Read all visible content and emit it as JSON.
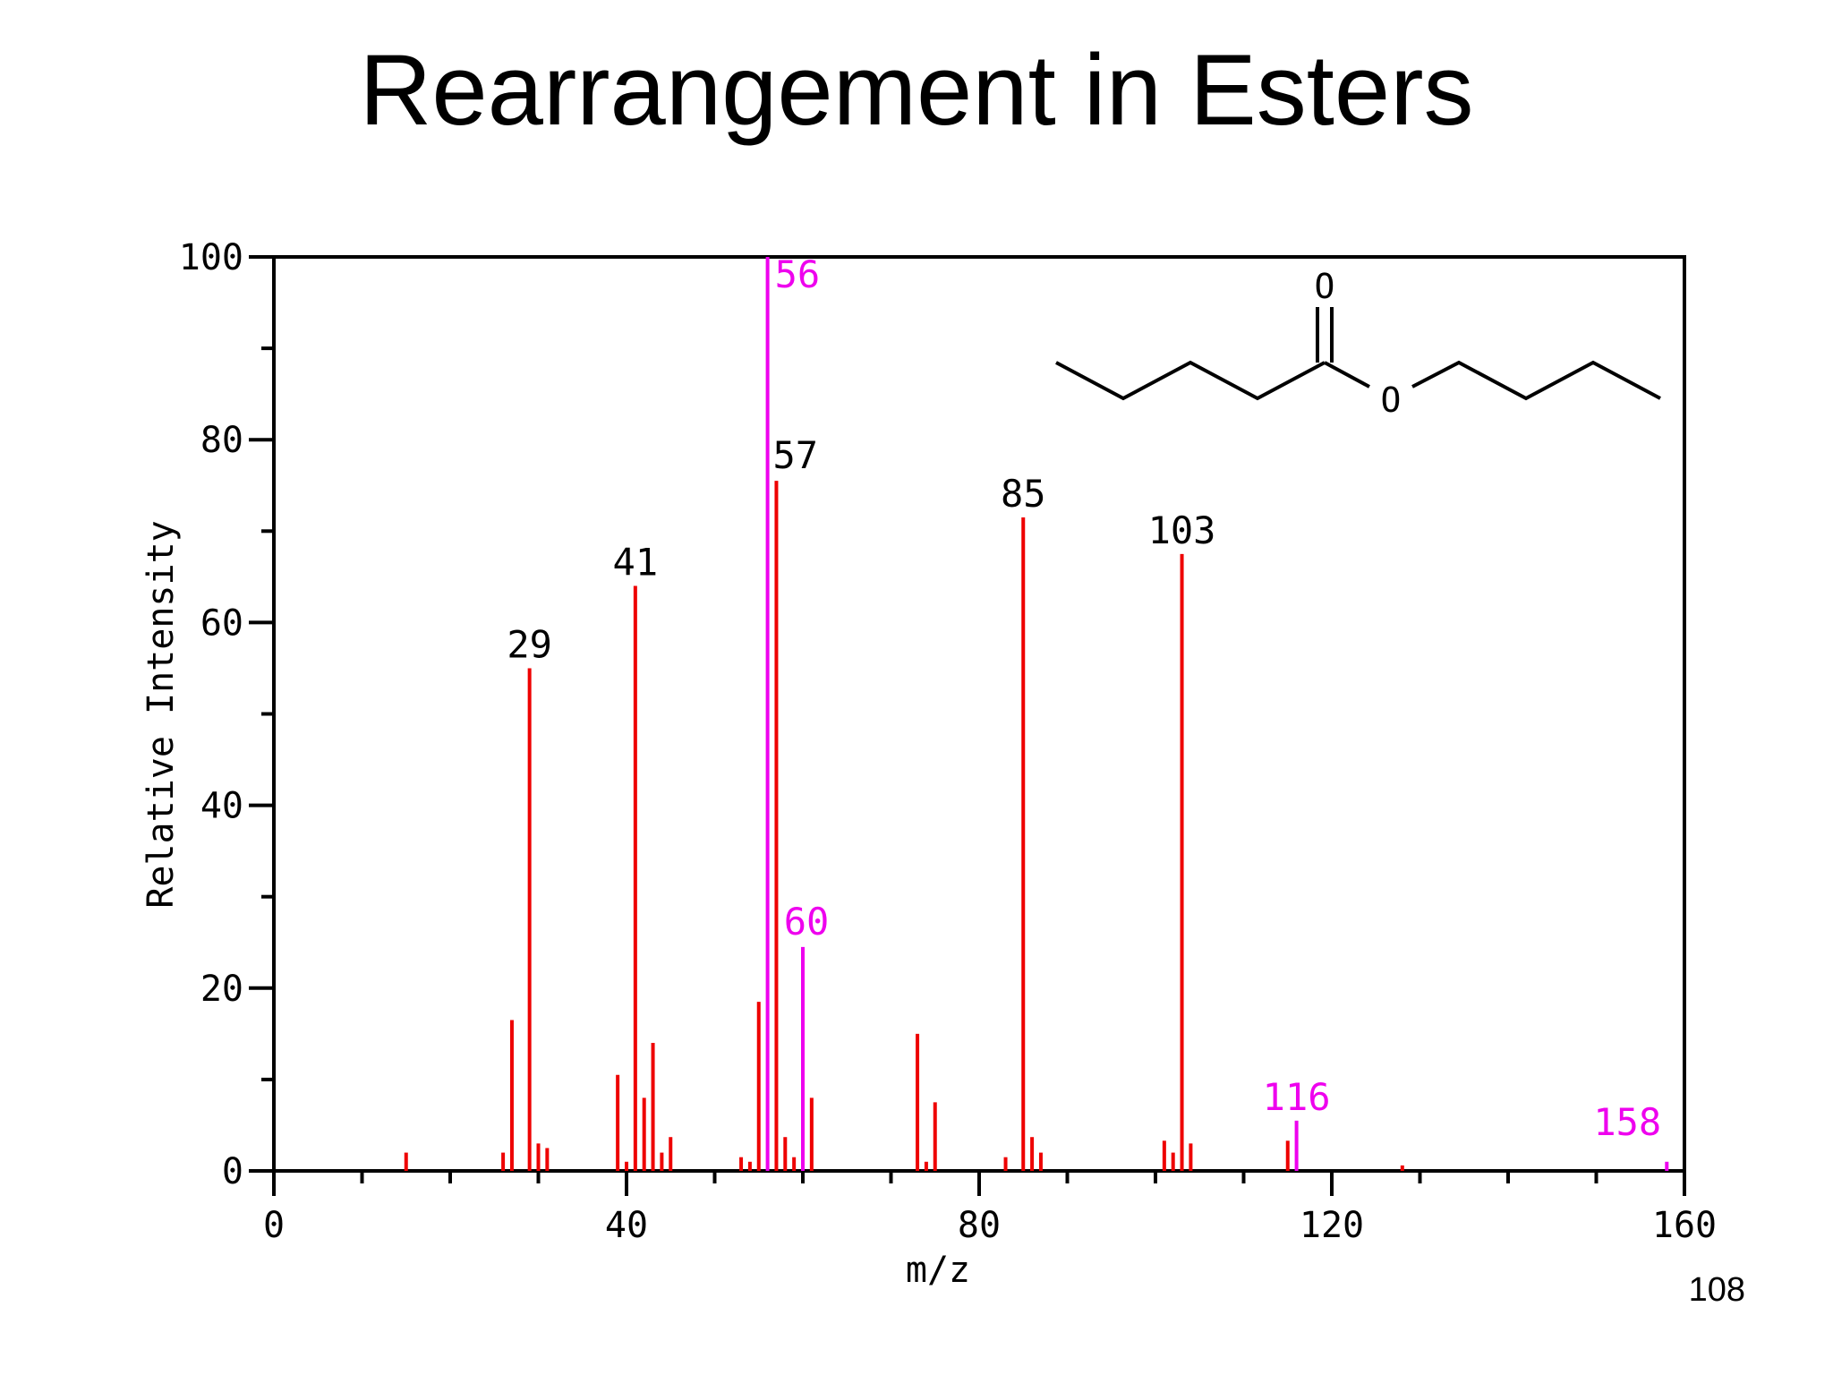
{
  "slide": {
    "title": "Rearrangement in Esters",
    "page_number": "108"
  },
  "chart_data": {
    "type": "bar",
    "title": "",
    "xlabel": "m/z",
    "ylabel": "Relative Intensity",
    "xlim": [
      0,
      160
    ],
    "ylim": [
      0,
      100
    ],
    "xticks": [
      0,
      40,
      80,
      120,
      160
    ],
    "yticks": [
      0,
      20,
      40,
      60,
      80,
      100
    ],
    "grid": false,
    "colors": {
      "normal": "#ee0000",
      "highlight": "#ee00ee",
      "label": "#000000"
    },
    "peaks": [
      {
        "x": 15,
        "y": 2
      },
      {
        "x": 26,
        "y": 2
      },
      {
        "x": 27,
        "y": 16.5
      },
      {
        "x": 29,
        "y": 55,
        "label": "29"
      },
      {
        "x": 30,
        "y": 3
      },
      {
        "x": 31,
        "y": 2.5
      },
      {
        "x": 39,
        "y": 10.5
      },
      {
        "x": 40,
        "y": 1
      },
      {
        "x": 41,
        "y": 64,
        "label": "41"
      },
      {
        "x": 42,
        "y": 8
      },
      {
        "x": 43,
        "y": 14
      },
      {
        "x": 44,
        "y": 2
      },
      {
        "x": 45,
        "y": 3.7
      },
      {
        "x": 53,
        "y": 1.5
      },
      {
        "x": 54,
        "y": 1
      },
      {
        "x": 55,
        "y": 18.5
      },
      {
        "x": 56,
        "y": 100,
        "label": "56",
        "highlight": true
      },
      {
        "x": 57,
        "y": 75.5,
        "label": "57"
      },
      {
        "x": 58,
        "y": 3.7
      },
      {
        "x": 59,
        "y": 1.5
      },
      {
        "x": 60,
        "y": 24.5,
        "label": "60",
        "highlight": true
      },
      {
        "x": 61,
        "y": 8
      },
      {
        "x": 73,
        "y": 15
      },
      {
        "x": 74,
        "y": 1
      },
      {
        "x": 75,
        "y": 7.5
      },
      {
        "x": 83,
        "y": 1.5
      },
      {
        "x": 85,
        "y": 71.5,
        "label": "85"
      },
      {
        "x": 86,
        "y": 3.7
      },
      {
        "x": 87,
        "y": 2
      },
      {
        "x": 101,
        "y": 3.3
      },
      {
        "x": 102,
        "y": 2
      },
      {
        "x": 103,
        "y": 67.5,
        "label": "103"
      },
      {
        "x": 104,
        "y": 3
      },
      {
        "x": 115,
        "y": 3.3
      },
      {
        "x": 116,
        "y": 5.5,
        "label": "116",
        "highlight": true
      },
      {
        "x": 128,
        "y": 0.6
      },
      {
        "x": 158,
        "y": 1,
        "label": "158",
        "highlight": true
      }
    ],
    "structure": {
      "atoms": [
        "O",
        "O"
      ]
    }
  }
}
